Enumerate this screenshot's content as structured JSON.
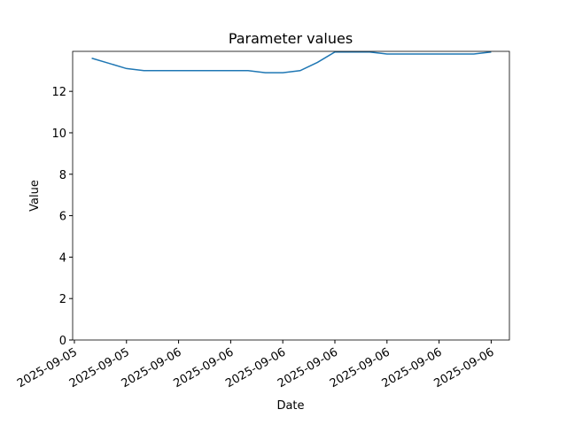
{
  "chart_data": {
    "type": "line",
    "title": "Parameter values",
    "xlabel": "Date",
    "ylabel": "Value",
    "x": [
      1,
      2,
      3,
      4,
      5,
      6,
      7,
      8,
      9,
      10,
      11,
      12,
      13,
      14,
      15,
      16,
      17,
      18,
      19,
      20,
      21,
      22,
      23,
      24
    ],
    "series": [
      {
        "name": "Value",
        "color": "#1f77b4",
        "values": [
          13.6,
          13.35,
          13.1,
          13.0,
          13.0,
          13.0,
          13.0,
          13.0,
          13.0,
          13.0,
          12.9,
          12.9,
          13.0,
          13.4,
          13.9,
          13.9,
          13.9,
          13.8,
          13.8,
          13.8,
          13.8,
          13.8,
          13.8,
          13.9
        ]
      }
    ],
    "xlim": [
      -0.1,
      25.05
    ],
    "xticks": [
      {
        "value": 0,
        "label": "2025-09-05"
      },
      {
        "value": 3,
        "label": "2025-09-05"
      },
      {
        "value": 6,
        "label": "2025-09-06"
      },
      {
        "value": 9,
        "label": "2025-09-06"
      },
      {
        "value": 12,
        "label": "2025-09-06"
      },
      {
        "value": 15,
        "label": "2025-09-06"
      },
      {
        "value": 18,
        "label": "2025-09-06"
      },
      {
        "value": 21,
        "label": "2025-09-06"
      },
      {
        "value": 24,
        "label": "2025-09-06"
      }
    ],
    "ylim": [
      0,
      13.93
    ],
    "yticks": [
      0,
      2,
      4,
      6,
      8,
      10,
      12
    ]
  }
}
